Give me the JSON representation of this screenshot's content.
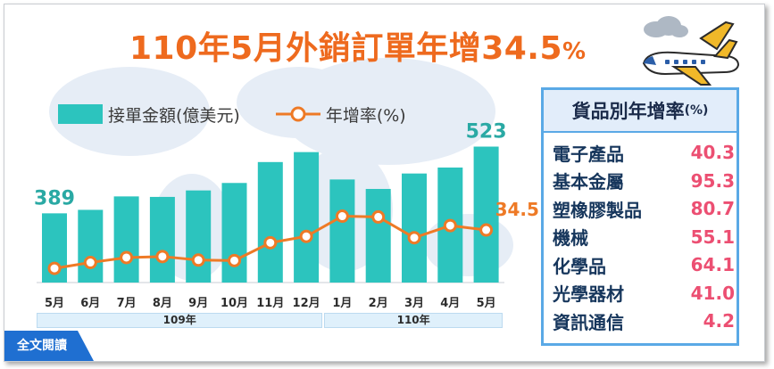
{
  "title": {
    "main": "110年5月外銷訂單年增34.5",
    "pct_sign": "%"
  },
  "legend": {
    "bars": "接單金額(億美元)",
    "line": "年增率(%)"
  },
  "chart_data": {
    "type": "bar",
    "categories": [
      "5月",
      "6月",
      "7月",
      "8月",
      "9月",
      "10月",
      "11月",
      "12月",
      "1月",
      "2月",
      "3月",
      "4月",
      "5月"
    ],
    "year_groups": [
      {
        "label": "109年",
        "count": 8
      },
      {
        "label": "110年",
        "count": 5
      }
    ],
    "series": [
      {
        "name": "接單金額(億美元)",
        "type": "bar",
        "values": [
          389,
          396,
          423,
          422,
          435,
          450,
          492,
          512,
          457,
          438,
          469,
          481,
          523
        ],
        "color": "#2cc4be"
      },
      {
        "name": "年增率(%)",
        "type": "line",
        "values": [
          -6.7,
          -0.4,
          4.9,
          6.0,
          2.2,
          1.7,
          20.8,
          27.6,
          49.3,
          48.5,
          26.2,
          39.2,
          34.5
        ],
        "color": "#ee7a26"
      }
    ],
    "data_labels": {
      "first_bar": "389",
      "last_bar": "523",
      "last_line": "34.5"
    },
    "ylim_bars": [
      250,
      540
    ],
    "ylim_line": [
      -20,
      90
    ]
  },
  "panel": {
    "title": "貨品別年增率",
    "unit": "(%)",
    "items": [
      {
        "name": "電子產品",
        "value": "40.3"
      },
      {
        "name": "基本金屬",
        "value": "95.3"
      },
      {
        "name": "塑橡膠製品",
        "value": "80.7"
      },
      {
        "name": "機械",
        "value": "55.1"
      },
      {
        "name": "化學品",
        "value": "64.1"
      },
      {
        "name": "光學器材",
        "value": "41.0"
      },
      {
        "name": "資訊通信",
        "value": "4.2"
      }
    ]
  },
  "button": {
    "label": "全文閱讀"
  },
  "colors": {
    "accent": "#ee6a1e",
    "bar": "#2cc4be",
    "line": "#ee7a26",
    "panel_border": "#5aa9e6",
    "panel_value": "#ec4f72",
    "button": "#1f6fd1"
  },
  "icons": {
    "decoration": "airplane-with-clouds-icon"
  }
}
